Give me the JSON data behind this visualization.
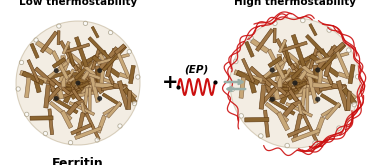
{
  "label_ferritin": "Ferritin",
  "label_low": "Low thermostability",
  "label_high": "High thermostability",
  "label_ep": "(EP)",
  "plus_sign": "+",
  "background_color": "#ffffff",
  "text_color": "#000000",
  "rod_color_dark": "#8B6530",
  "rod_color_light": "#C8A878",
  "rod_color_mid": "#A07848",
  "rod_edge_dark": "#5C3810",
  "rod_edge_light": "#806040",
  "ep_color": "#CC1010",
  "arrow_color": "#9AAFA8",
  "hole_color": "#1A1A1A",
  "outer_circle_color": "#B8A888",
  "fig_width": 3.78,
  "fig_height": 1.65,
  "dpi": 100
}
